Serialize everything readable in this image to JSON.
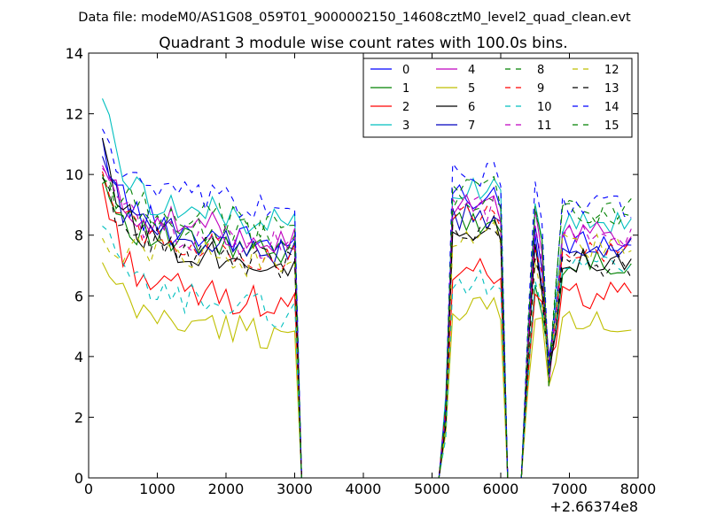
{
  "suptitle": "Data file: modeM0/AS1G08_059T01_9000002150_14608cztM0_level2_quad_clean.evt",
  "chart_data": {
    "type": "line",
    "title": "Quadrant 3 module wise count rates with 100.0s bins.",
    "xlabel": "",
    "ylabel": "",
    "x_offset_label": "+2.66374e8",
    "xlim": [
      0,
      8000
    ],
    "ylim": [
      0,
      14
    ],
    "xticks": [
      0,
      1000,
      2000,
      3000,
      4000,
      5000,
      6000,
      7000,
      8000
    ],
    "yticks": [
      0,
      2,
      4,
      6,
      8,
      10,
      12,
      14
    ],
    "legend_position": "top-right",
    "legend_columns": 4,
    "x": [
      200,
      300,
      400,
      500,
      600,
      700,
      800,
      900,
      1000,
      1100,
      1200,
      1300,
      1400,
      1500,
      1600,
      1700,
      1800,
      1900,
      2000,
      2100,
      2200,
      2300,
      2400,
      2500,
      2600,
      2700,
      2800,
      2900,
      3000,
      3100,
      3200,
      3300,
      3400,
      3500,
      3600,
      3700,
      3800,
      3900,
      4000,
      4100,
      4200,
      4300,
      4400,
      4500,
      4600,
      4700,
      4800,
      4900,
      5000,
      5100,
      5200,
      5300,
      5400,
      5500,
      5600,
      5700,
      5800,
      5900,
      6000,
      6100,
      6200,
      6300,
      6400,
      6500,
      6600,
      6700,
      6800,
      6900,
      7000,
      7100,
      7200,
      7300,
      7400,
      7500,
      7600,
      7700,
      7800,
      7900
    ],
    "series": [
      {
        "name": "0",
        "color": "#0000ff",
        "dash": false,
        "base": 8.2,
        "start": 11.2,
        "p1": 9.3,
        "p2a": 8.0,
        "p2b": 6.5,
        "p3": 7.7
      },
      {
        "name": "1",
        "color": "#008000",
        "dash": false,
        "base": 7.8,
        "start": 10.0,
        "p1": 8.4,
        "p2a": 6.5,
        "p2b": 5.2,
        "p3": 7.1
      },
      {
        "name": "2",
        "color": "#ff0000",
        "dash": false,
        "base": 6.2,
        "start": 9.7,
        "p1": 6.8,
        "p2a": 6.2,
        "p2b": 5.8,
        "p3": 6.0
      },
      {
        "name": "3",
        "color": "#00bfbf",
        "dash": false,
        "base": 8.9,
        "start": 12.5,
        "p1": 9.6,
        "p2a": 9.0,
        "p2b": 7.9,
        "p3": 8.4
      },
      {
        "name": "4",
        "color": "#bf00bf",
        "dash": false,
        "base": 8.4,
        "start": 10.3,
        "p1": 9.0,
        "p2a": 8.6,
        "p2b": 7.2,
        "p3": 8.0
      },
      {
        "name": "5",
        "color": "#bfbf00",
        "dash": false,
        "base": 5.2,
        "start": 7.1,
        "p1": 5.6,
        "p2a": 5.5,
        "p2b": 5.0,
        "p3": 5.1
      },
      {
        "name": "6",
        "color": "#000000",
        "dash": false,
        "base": 7.6,
        "start": 11.2,
        "p1": 8.2,
        "p2a": 7.6,
        "p2b": 6.4,
        "p3": 7.2
      },
      {
        "name": "7",
        "color": "#0000bf",
        "dash": false,
        "base": 8.0,
        "start": 10.6,
        "p1": 8.6,
        "p2a": 8.2,
        "p2b": 6.8,
        "p3": 7.6
      },
      {
        "name": "8",
        "color": "#008000",
        "dash": true,
        "base": 8.8,
        "start": 9.9,
        "p1": 9.1,
        "p2a": 9.0,
        "p2b": 7.6,
        "p3": 8.8
      },
      {
        "name": "9",
        "color": "#ff0000",
        "dash": true,
        "base": 7.8,
        "start": 10.1,
        "p1": 8.6,
        "p2a": 7.6,
        "p2b": 6.6,
        "p3": 7.4
      },
      {
        "name": "10",
        "color": "#00bfbf",
        "dash": true,
        "base": 6.0,
        "start": 8.3,
        "p1": 6.5,
        "p2a": 6.1,
        "p2b": 5.4,
        "p3": 7.0
      },
      {
        "name": "11",
        "color": "#bf00bf",
        "dash": true,
        "base": 8.1,
        "start": 10.2,
        "p1": 8.9,
        "p2a": 8.2,
        "p2b": 7.0,
        "p3": 8.0
      },
      {
        "name": "12",
        "color": "#bfbf00",
        "dash": true,
        "base": 7.5,
        "start": 7.9,
        "p1": 8.0,
        "p2a": 7.4,
        "p2b": 6.2,
        "p3": 7.6
      },
      {
        "name": "13",
        "color": "#000000",
        "dash": true,
        "base": 7.6,
        "start": 9.9,
        "p1": 8.0,
        "p2a": 7.2,
        "p2b": 6.3,
        "p3": 7.0
      },
      {
        "name": "14",
        "color": "#0000ff",
        "dash": true,
        "base": 9.3,
        "start": 11.5,
        "p1": 10.0,
        "p2a": 9.5,
        "p2b": 8.3,
        "p3": 9.0
      },
      {
        "name": "15",
        "color": "#008000",
        "dash": true,
        "base": 8.4,
        "start": 9.7,
        "p1": 9.5,
        "p2a": 9.0,
        "p2b": 7.7,
        "p3": 8.6
      }
    ]
  }
}
